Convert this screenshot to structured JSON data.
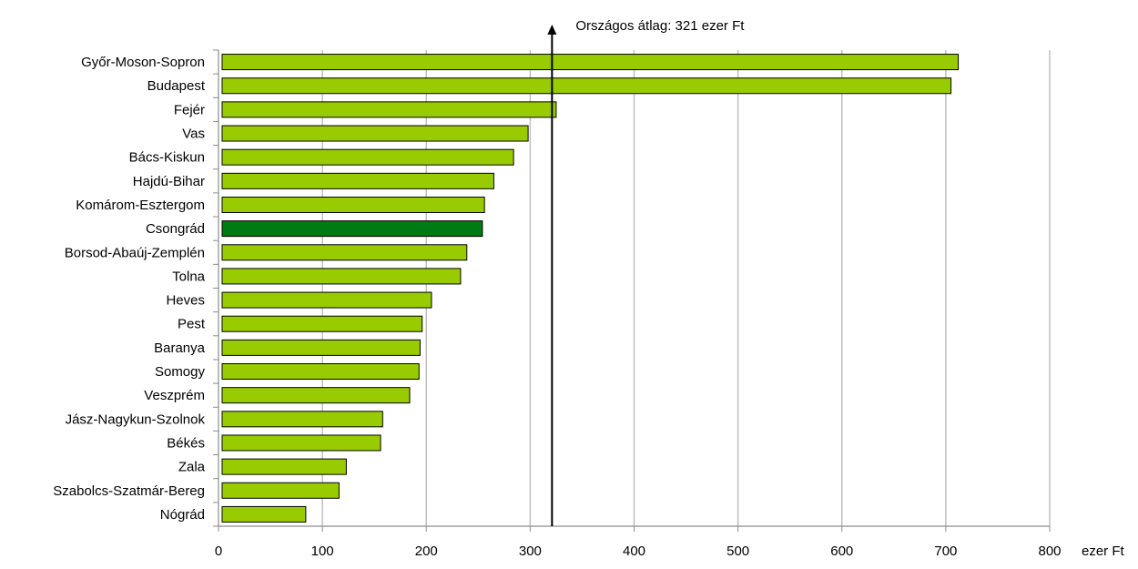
{
  "chart_data": {
    "type": "bar",
    "orientation": "horizontal",
    "categories": [
      "Győr-Moson-Sopron",
      "Budapest",
      "Fejér",
      "Vas",
      "Bács-Kiskun",
      "Hajdú-Bihar",
      "Komárom-Esztergom",
      "Csongrád",
      "Borsod-Abaúj-Zemplén",
      "Tolna",
      "Heves",
      "Pest",
      "Baranya",
      "Somogy",
      "Veszprém",
      "Jász-Nagykun-Szolnok",
      "Békés",
      "Zala",
      "Szabolcs-Szatmár-Bereg",
      "Nógrád"
    ],
    "values": [
      712,
      705,
      325,
      298,
      284,
      265,
      256,
      254,
      239,
      233,
      205,
      196,
      194,
      193,
      184,
      158,
      156,
      123,
      116,
      84
    ],
    "highlight_category": "Csongrád",
    "xlim": [
      0,
      800
    ],
    "xticks": [
      0,
      100,
      200,
      300,
      400,
      500,
      600,
      700,
      800
    ],
    "x_unit": "ezer Ft",
    "grid": true,
    "reference_line": {
      "value": 321,
      "label": "Országos átlag: 321 ezer Ft"
    },
    "colors": {
      "bar": "#99cc00",
      "highlight": "#007a14",
      "grid": "#c0c0c0",
      "line": "#000000"
    }
  }
}
